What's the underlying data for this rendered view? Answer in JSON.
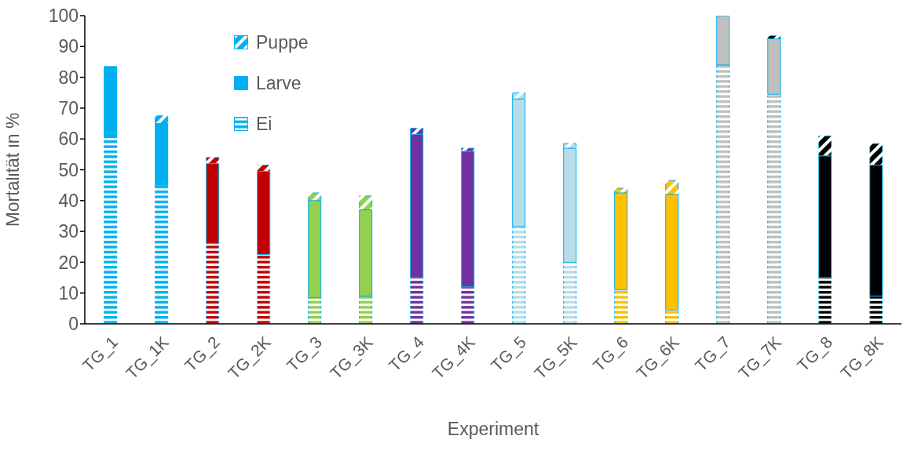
{
  "chart_data": {
    "type": "bar",
    "stacked": true,
    "xlabel": "Experiment",
    "ylabel": "Mortalität in %",
    "categories": [
      "TG_1",
      "TG_1K",
      "TG_2",
      "TG_2K",
      "TG_3",
      "TG_3K",
      "TG_4",
      "TG_4K",
      "TG_5",
      "TG_5K",
      "TG_6",
      "TG_6K",
      "TG_7",
      "TG_7K",
      "TG_8",
      "TG_8K"
    ],
    "series": [
      {
        "name": "Ei",
        "color": "#00b0f0",
        "colors": [
          "#00b0f0",
          "#00b0f0",
          "#c00000",
          "#c00000",
          "#92d050",
          "#92d050",
          "#7030a0",
          "#7030a0",
          "#b7dde8",
          "#b7dde8",
          "#ffc000",
          "#ffc000",
          "#bfbfbf",
          "#bfbfbf",
          "#000000",
          "#000000"
        ],
        "values": [
          60.5,
          45,
          26,
          22.5,
          8.5,
          9,
          15,
          12,
          31.5,
          20,
          11,
          4.5,
          84,
          74.5,
          15,
          9
        ]
      },
      {
        "name": "Larve",
        "color": "#00b0f0",
        "colors": [
          "#00b0f0",
          "#00b0f0",
          "#c00000",
          "#c00000",
          "#92d050",
          "#92d050",
          "#7030a0",
          "#7030a0",
          "#b7dde8",
          "#b7dde8",
          "#ffc000",
          "#ffc000",
          "#bfbfbf",
          "#bfbfbf",
          "#000000",
          "#000000"
        ],
        "values": [
          23,
          20,
          26,
          27,
          31.5,
          28,
          46.5,
          44,
          41.5,
          37,
          31.5,
          37.5,
          16,
          18,
          39.5,
          42.5
        ]
      },
      {
        "name": "Puppe",
        "color": "#00b0f0",
        "colors": [
          "#00b0f0",
          "#00b0f0",
          "#c00000",
          "#c00000",
          "#92d050",
          "#92d050",
          "#7030a0",
          "#7030a0",
          "#b7dde8",
          "#b7dde8",
          "#ffc000",
          "#ffc000",
          "#bfbfbf",
          "#000000",
          "#000000",
          "#000000"
        ],
        "values": [
          0,
          2.5,
          2,
          2,
          2.5,
          4.5,
          2,
          1,
          2,
          1.5,
          1.5,
          4.5,
          0,
          1,
          6.5,
          7
        ]
      }
    ],
    "ylim": [
      0,
      100
    ],
    "yticks": [
      0,
      10,
      20,
      30,
      40,
      50,
      60,
      70,
      80,
      90,
      100
    ],
    "grid": false,
    "legend": "top left"
  }
}
